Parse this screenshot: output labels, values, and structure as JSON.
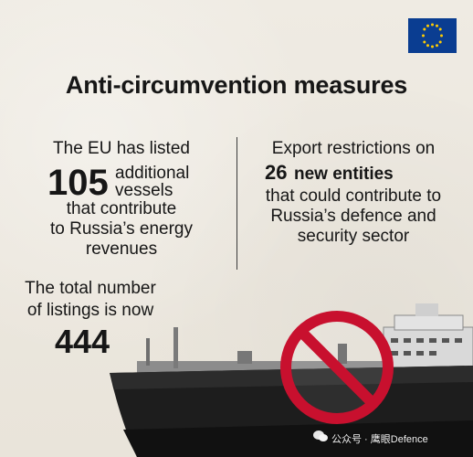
{
  "title": "Anti-circumvention measures",
  "left": {
    "intro": "The EU has listed",
    "number": "105",
    "additional_line1": "additional",
    "additional_line2": "vessels",
    "rest_line1": "that contribute",
    "rest_line2": "to Russia’s energy",
    "rest_line3": "revenues"
  },
  "right": {
    "intro": "Export restrictions on",
    "number": "26",
    "emphasis": "new entities",
    "rest_line1": "that could contribute to",
    "rest_line2": "Russia’s defence and",
    "rest_line3": "security sector"
  },
  "total": {
    "line1": "The total number",
    "line2": "of listings is now",
    "number": "444"
  },
  "watermark": "公众号 · 鹰眼Defence",
  "colors": {
    "eu_blue": "#0a3d91",
    "eu_star": "#ffcc00",
    "prohibit_red": "#c8102e",
    "hull": "#1d1d1d"
  }
}
